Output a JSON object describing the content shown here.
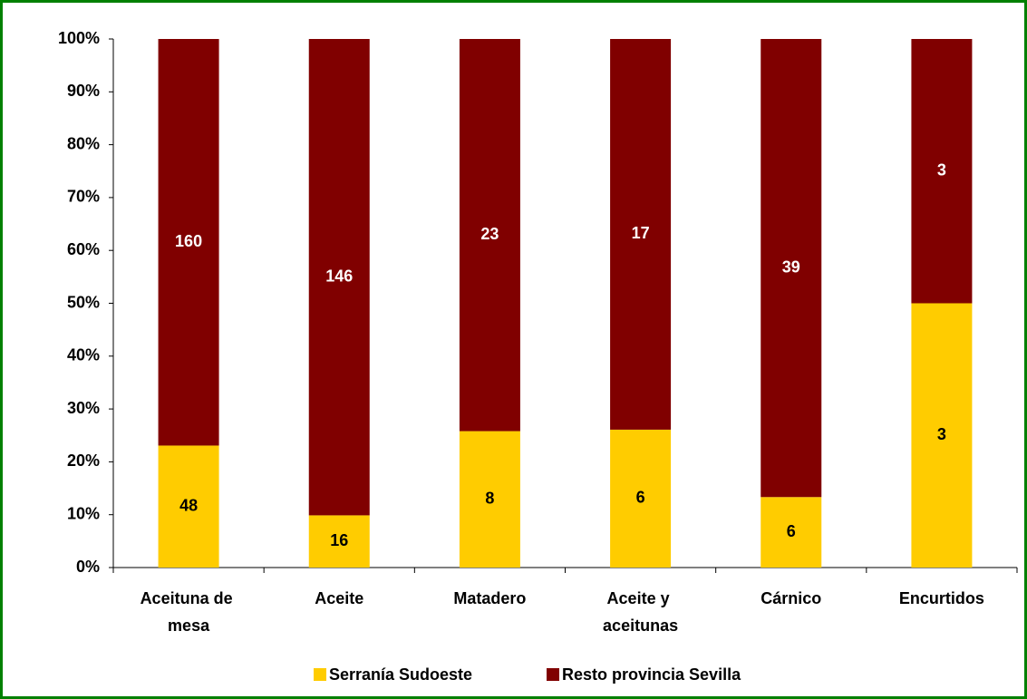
{
  "chart_data": {
    "type": "bar",
    "stacked": "percent",
    "categories": [
      "Aceituna de mesa",
      "Aceite",
      "Matadero",
      "Aceite y aceitunas",
      "Cárnico",
      "Encurtidos"
    ],
    "series": [
      {
        "name": "Serranía Sudoeste",
        "color": "#ffcc00",
        "values": [
          48,
          16,
          8,
          6,
          6,
          3
        ]
      },
      {
        "name": "Resto provincia Sevilla",
        "color": "#800000",
        "values": [
          160,
          146,
          23,
          17,
          39,
          3
        ]
      }
    ],
    "ylim": [
      0,
      100
    ],
    "yticks": [
      {
        "value": 0,
        "label": "0%"
      },
      {
        "value": 10,
        "label": "10%"
      },
      {
        "value": 20,
        "label": "20%"
      },
      {
        "value": 30,
        "label": "30%"
      },
      {
        "value": 40,
        "label": "40%"
      },
      {
        "value": 50,
        "label": "50%"
      },
      {
        "value": 60,
        "label": "60%"
      },
      {
        "value": 70,
        "label": "70%"
      },
      {
        "value": 80,
        "label": "80%"
      },
      {
        "value": 90,
        "label": "90%"
      },
      {
        "value": 100,
        "label": "100%"
      }
    ],
    "grid": false,
    "legend": "bottom"
  }
}
